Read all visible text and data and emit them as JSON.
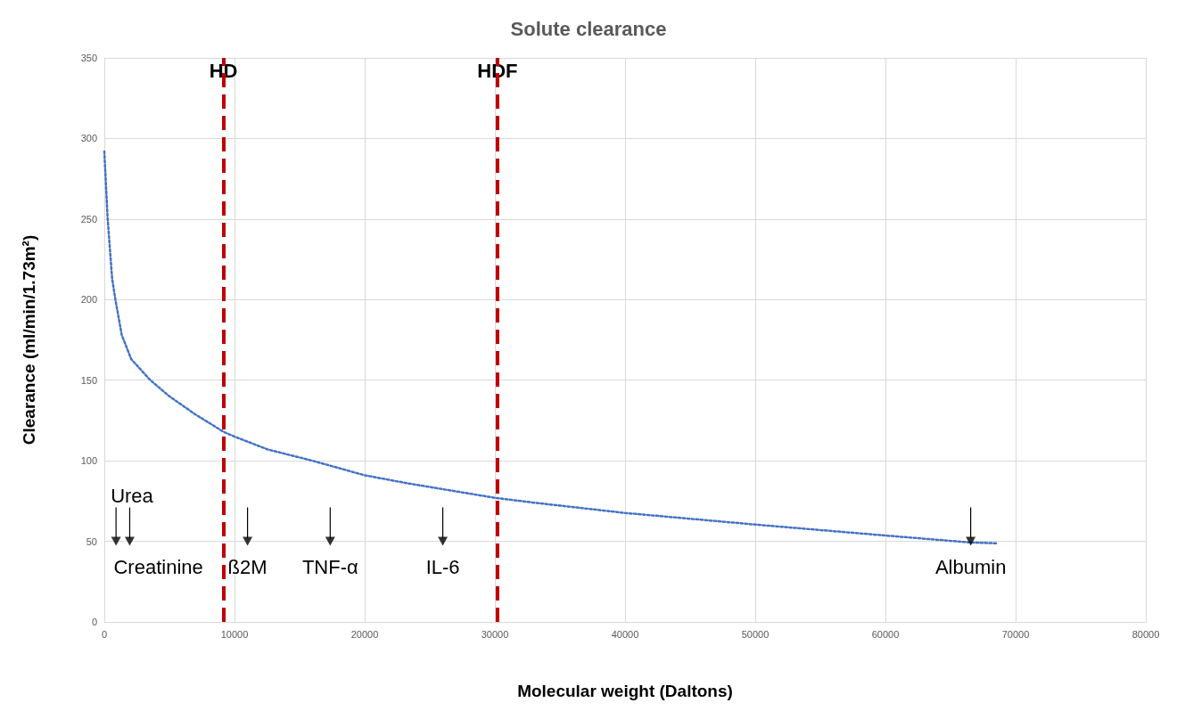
{
  "chart_data": {
    "type": "line",
    "title": "Solute clearance",
    "xlabel": "Molecular weight (Daltons)",
    "ylabel": "Clearance (ml/min/1.73m²)",
    "xlim": [
      0,
      80000
    ],
    "xticks": [
      0,
      10000,
      20000,
      30000,
      40000,
      50000,
      60000,
      70000,
      80000
    ],
    "ylim": [
      0,
      350
    ],
    "yticks": [
      0,
      50,
      100,
      150,
      200,
      250,
      300,
      350
    ],
    "grid": true,
    "marker": "none",
    "line_style": "dotted",
    "series": [
      {
        "color": "#4472c4",
        "x": [
          0,
          250,
          600,
          850,
          1340,
          2070,
          3540,
          5000,
          6950,
          9150,
          10000,
          12560,
          16000,
          20000,
          23300,
          30000,
          33000,
          40000,
          50000,
          60000,
          66500,
          68500
        ],
        "values": [
          292,
          251,
          213,
          200,
          178,
          163,
          150,
          140,
          129,
          118,
          115,
          107,
          100,
          91,
          86,
          77,
          74,
          67.6,
          60.4,
          53.6,
          49.3,
          48.8
        ]
      },
      {
        "type": "scatter",
        "marker": "triangle",
        "color": "#000000",
        "x": [
          900,
          1950,
          11000,
          17350,
          26000,
          66550
        ],
        "values": [
          50,
          50,
          50,
          50,
          50,
          50
        ]
      }
    ],
    "ref_lines": [
      {
        "axis": "x",
        "value": 9150,
        "label": "HD",
        "color": "#c00000",
        "line_style": "dashed"
      },
      {
        "axis": "x",
        "value": 30200,
        "label": "HDF",
        "color": "#c00000",
        "line_style": "dashed"
      }
    ],
    "annotations": [
      {
        "text": "Urea",
        "x": 900,
        "y": 50
      },
      {
        "text": "Creatinine",
        "x": 1950,
        "y": 50
      },
      {
        "text": "ß2M",
        "x": 11000,
        "y": 50
      },
      {
        "text": "TNF-α",
        "x": 17350,
        "y": 50
      },
      {
        "text": "IL-6",
        "x": 26000,
        "y": 50
      },
      {
        "text": "Albumin",
        "x": 66550,
        "y": 50
      }
    ]
  }
}
